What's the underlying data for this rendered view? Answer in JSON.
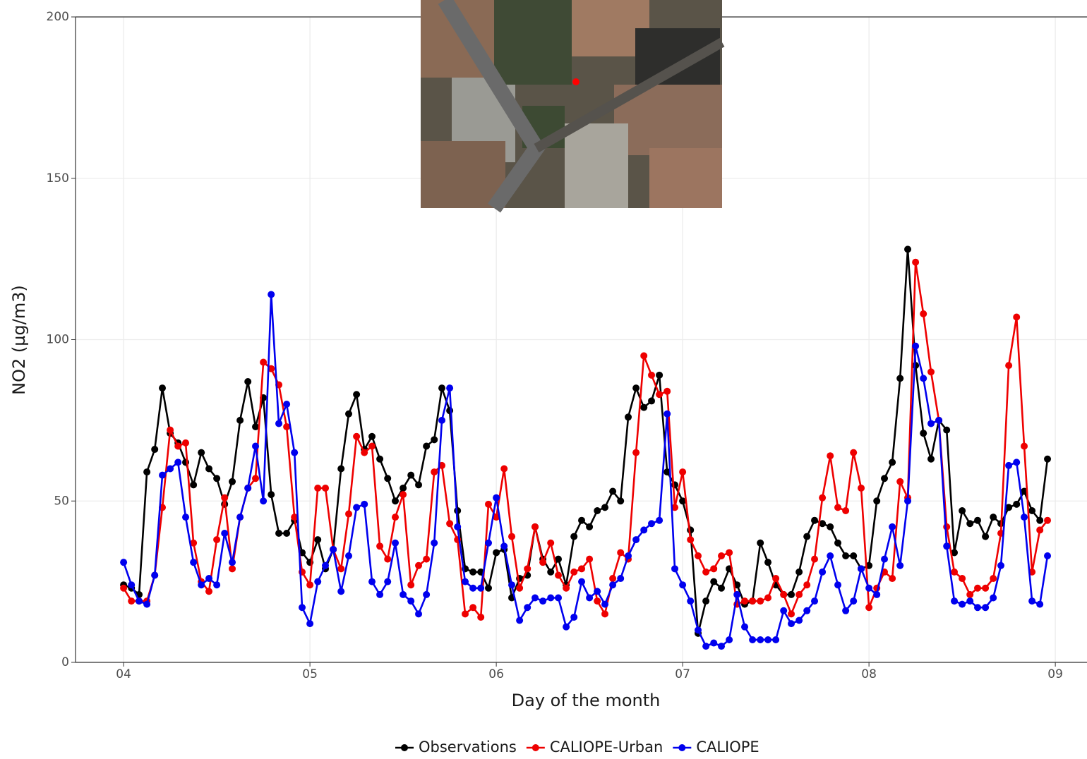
{
  "chart_data": {
    "type": "line",
    "x_label": "Day of the month",
    "y_label": "NO2 (µg/m3)",
    "xlim": [
      3.742,
      9.17
    ],
    "ylim": [
      0,
      200
    ],
    "xticks": [
      {
        "value": 4,
        "label": "04"
      },
      {
        "value": 5,
        "label": "05"
      },
      {
        "value": 6,
        "label": "06"
      },
      {
        "value": 7,
        "label": "07"
      },
      {
        "value": 8,
        "label": "08"
      },
      {
        "value": 9,
        "label": "09"
      }
    ],
    "yticks": [
      0,
      50,
      100,
      150,
      200
    ],
    "grid": true,
    "legend": "bottom",
    "x": [
      4,
      4.042,
      4.083,
      4.125,
      4.167,
      4.208,
      4.25,
      4.292,
      4.333,
      4.375,
      4.417,
      4.458,
      4.5,
      4.542,
      4.583,
      4.625,
      4.667,
      4.708,
      4.75,
      4.792,
      4.833,
      4.875,
      4.917,
      4.958,
      5,
      5.042,
      5.083,
      5.125,
      5.167,
      5.208,
      5.25,
      5.292,
      5.333,
      5.375,
      5.417,
      5.458,
      5.5,
      5.542,
      5.583,
      5.625,
      5.667,
      5.708,
      5.75,
      5.792,
      5.833,
      5.875,
      5.917,
      5.958,
      6,
      6.042,
      6.083,
      6.125,
      6.167,
      6.208,
      6.25,
      6.292,
      6.333,
      6.375,
      6.417,
      6.458,
      6.5,
      6.542,
      6.583,
      6.625,
      6.667,
      6.708,
      6.75,
      6.792,
      6.833,
      6.875,
      6.917,
      6.958,
      7,
      7.042,
      7.083,
      7.125,
      7.167,
      7.208,
      7.25,
      7.292,
      7.333,
      7.375,
      7.417,
      7.458,
      7.5,
      7.542,
      7.583,
      7.625,
      7.667,
      7.708,
      7.75,
      7.792,
      7.833,
      7.875,
      7.917,
      7.958,
      8,
      8.042,
      8.083,
      8.125,
      8.167,
      8.208,
      8.25,
      8.292,
      8.333,
      8.375,
      8.417,
      8.458,
      8.5,
      8.542,
      8.583,
      8.625,
      8.667,
      8.708,
      8.75,
      8.792,
      8.833,
      8.875,
      8.917,
      8.958
    ],
    "series": [
      {
        "name": "Observations",
        "color": "#000000",
        "values": [
          24,
          23,
          21,
          59,
          66,
          85,
          71,
          68,
          62,
          55,
          65,
          60,
          57,
          49,
          56,
          75,
          87,
          73,
          82,
          52,
          40,
          40,
          44,
          34,
          31,
          38,
          29,
          35,
          60,
          77,
          83,
          66,
          70,
          63,
          57,
          50,
          54,
          58,
          55,
          67,
          69,
          85,
          78,
          47,
          29,
          28,
          28,
          23,
          34,
          35,
          20,
          26,
          27,
          42,
          32,
          28,
          32,
          24,
          39,
          44,
          42,
          47,
          48,
          53,
          50,
          76,
          85,
          79,
          81,
          89,
          59,
          55,
          50,
          41,
          9,
          19,
          25,
          23,
          29,
          24,
          18,
          19,
          37,
          31,
          24,
          21,
          21,
          28,
          39,
          44,
          43,
          42,
          37,
          33,
          33,
          29,
          30,
          50,
          57,
          62,
          88,
          128,
          92,
          71,
          63,
          75,
          72,
          34,
          47,
          43,
          44,
          39,
          45,
          43,
          48,
          49,
          53,
          47,
          44,
          63
        ]
      },
      {
        "name": "CALIOPE-Urban",
        "color": "#ee0000",
        "values": [
          23,
          19,
          19,
          19,
          27,
          48,
          72,
          67,
          68,
          37,
          25,
          22,
          38,
          51,
          29,
          45,
          54,
          57,
          93,
          91,
          86,
          73,
          45,
          28,
          24,
          54,
          54,
          35,
          29,
          46,
          70,
          65,
          67,
          36,
          32,
          45,
          52,
          24,
          30,
          32,
          59,
          61,
          43,
          38,
          15,
          17,
          14,
          49,
          45,
          60,
          39,
          23,
          29,
          42,
          31,
          37,
          27,
          23,
          28,
          29,
          32,
          19,
          15,
          26,
          34,
          32,
          65,
          95,
          89,
          83,
          84,
          48,
          59,
          38,
          33,
          28,
          29,
          33,
          34,
          18,
          19,
          19,
          19,
          20,
          26,
          21,
          15,
          21,
          24,
          32,
          51,
          64,
          48,
          47,
          65,
          54,
          17,
          23,
          28,
          26,
          56,
          51,
          124,
          108,
          90,
          75,
          42,
          28,
          26,
          21,
          23,
          23,
          26,
          40,
          92,
          107,
          67,
          28,
          41,
          44
        ]
      },
      {
        "name": "CALIOPE",
        "color": "#0000ee",
        "values": [
          31,
          24,
          19,
          18,
          27,
          58,
          60,
          62,
          45,
          31,
          24,
          26,
          24,
          40,
          31,
          45,
          54,
          67,
          50,
          114,
          74,
          80,
          65,
          17,
          12,
          25,
          30,
          35,
          22,
          33,
          48,
          49,
          25,
          21,
          25,
          37,
          21,
          19,
          15,
          21,
          37,
          75,
          85,
          42,
          25,
          23,
          23,
          37,
          51,
          36,
          24,
          13,
          17,
          20,
          19,
          20,
          20,
          11,
          14,
          25,
          20,
          22,
          18,
          24,
          26,
          33,
          38,
          41,
          43,
          44,
          77,
          29,
          24,
          19,
          10,
          5,
          6,
          5,
          7,
          21,
          11,
          7,
          7,
          7,
          7,
          16,
          12,
          13,
          16,
          19,
          28,
          33,
          24,
          16,
          19,
          29,
          23,
          21,
          32,
          42,
          30,
          50,
          98,
          88,
          74,
          75,
          36,
          19,
          18,
          19,
          17,
          17,
          20,
          30,
          61,
          62,
          45,
          19,
          18,
          33
        ]
      }
    ]
  }
}
